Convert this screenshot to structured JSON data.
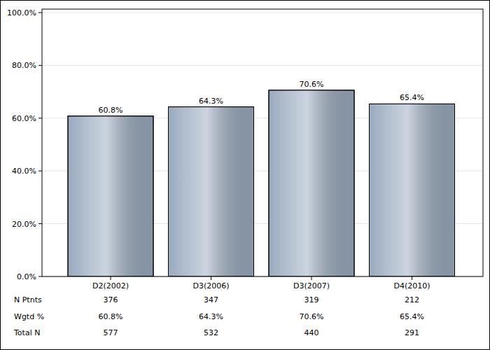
{
  "chart_data": {
    "type": "bar",
    "categories": [
      "D2(2002)",
      "D3(2006)",
      "D3(2007)",
      "D4(2010)"
    ],
    "values": [
      60.8,
      64.3,
      70.6,
      65.4
    ],
    "value_labels": [
      "60.8%",
      "64.3%",
      "70.6%",
      "65.4%"
    ],
    "data_labels": true,
    "color": "#9aabbf",
    "ylim": [
      0,
      100
    ],
    "yticks": [
      {
        "value": 0,
        "label": "0.0%"
      },
      {
        "value": 20,
        "label": "20.0%"
      },
      {
        "value": 40,
        "label": "40.0%"
      },
      {
        "value": 60,
        "label": "60.0%"
      },
      {
        "value": 80,
        "label": "80.0%"
      },
      {
        "value": 100,
        "label": "100.0%"
      }
    ],
    "grid": true
  },
  "table": {
    "rows": [
      {
        "label": "N Ptnts",
        "values": [
          376,
          347,
          319,
          212
        ]
      },
      {
        "label": "Wgtd %",
        "values": [
          "60.8%",
          "64.3%",
          "70.6%",
          "65.4%"
        ]
      },
      {
        "label": "Total N",
        "values": [
          577,
          532,
          440,
          291
        ]
      }
    ]
  }
}
